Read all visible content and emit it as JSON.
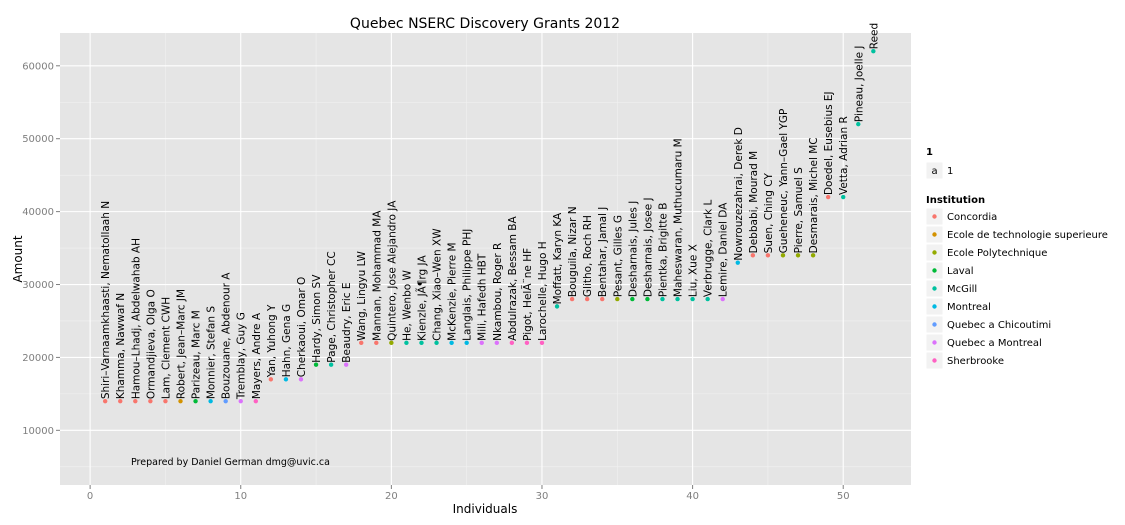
{
  "chart_data": {
    "type": "scatter",
    "title": "Quebec NSERC Discovery Grants 2012",
    "xlabel": "Individuals",
    "ylabel": "Amount",
    "xlim": [
      -2,
      54.5
    ],
    "ylim": [
      2500,
      64500
    ],
    "x_ticks": [
      0,
      10,
      20,
      30,
      40,
      50
    ],
    "y_ticks": [
      10000,
      20000,
      30000,
      40000,
      50000,
      60000
    ],
    "grid": true,
    "legend_position": "right",
    "annotation": "Prepared by Daniel German dmg@uvic.ca",
    "legend_label_key": {
      "title": "1",
      "glyph": "a",
      "label": "1"
    },
    "legend_title": "Institution",
    "institutions": [
      {
        "name": "Concordia",
        "color": "#F8766D"
      },
      {
        "name": "Ecole de technologie superieure",
        "color": "#D39200"
      },
      {
        "name": "Ecole Polytechnique",
        "color": "#93AA00"
      },
      {
        "name": "Laval",
        "color": "#00BA38"
      },
      {
        "name": "McGill",
        "color": "#00C19F"
      },
      {
        "name": "Montreal",
        "color": "#00B9E3"
      },
      {
        "name": "Quebec a Chicoutimi",
        "color": "#619CFF"
      },
      {
        "name": "Quebec a Montreal",
        "color": "#DB72FB"
      },
      {
        "name": "Sherbrooke",
        "color": "#FF61C3"
      }
    ],
    "points": [
      {
        "x": 1,
        "y": 14000,
        "name": "Shiri–Varnaamkhaasti, Nematollaah N",
        "institution": "Concordia"
      },
      {
        "x": 2,
        "y": 14000,
        "name": "Khamma, Nawwaf N",
        "institution": "Concordia"
      },
      {
        "x": 3,
        "y": 14000,
        "name": "Hamou–Lhadj, Abdelwahab AH",
        "institution": "Concordia"
      },
      {
        "x": 4,
        "y": 14000,
        "name": "Ormandjieva, Olga O",
        "institution": "Concordia"
      },
      {
        "x": 5,
        "y": 14000,
        "name": "Lam, Clement CWH",
        "institution": "Concordia"
      },
      {
        "x": 6,
        "y": 14000,
        "name": "Robert, Jean–Marc JM",
        "institution": "Ecole de technologie superieure"
      },
      {
        "x": 7,
        "y": 14000,
        "name": "Parizeau, Marc M",
        "institution": "Laval"
      },
      {
        "x": 8,
        "y": 14000,
        "name": "Monnier, Stefan S",
        "institution": "Montreal"
      },
      {
        "x": 9,
        "y": 14000,
        "name": "Bouzouane, Abdenour A",
        "institution": "Quebec a Chicoutimi"
      },
      {
        "x": 10,
        "y": 14000,
        "name": "Tremblay, Guy G",
        "institution": "Quebec a Montreal"
      },
      {
        "x": 11,
        "y": 14000,
        "name": "Mayers, Andre A",
        "institution": "Sherbrooke"
      },
      {
        "x": 12,
        "y": 17000,
        "name": "Yan, Yuhong Y",
        "institution": "Concordia"
      },
      {
        "x": 13,
        "y": 17000,
        "name": "Hahn, Gena G",
        "institution": "Montreal"
      },
      {
        "x": 14,
        "y": 17000,
        "name": "Cherkaoui, Omar O",
        "institution": "Quebec a Montreal"
      },
      {
        "x": 15,
        "y": 19000,
        "name": "Hardy, Simon SV",
        "institution": "Laval"
      },
      {
        "x": 16,
        "y": 19000,
        "name": "Page, Christopher CC",
        "institution": "McGill"
      },
      {
        "x": 17,
        "y": 19000,
        "name": "Beaudry, Eric E",
        "institution": "Quebec a Montreal"
      },
      {
        "x": 18,
        "y": 22000,
        "name": "Wang, Lingyu LW",
        "institution": "Concordia"
      },
      {
        "x": 19,
        "y": 22000,
        "name": "Mannan, Mohammad MA",
        "institution": "Concordia"
      },
      {
        "x": 20,
        "y": 22000,
        "name": "Quintero, Jose Alejandro JA",
        "institution": "Ecole Polytechnique"
      },
      {
        "x": 21,
        "y": 22000,
        "name": "He, Wenbo W",
        "institution": "McGill"
      },
      {
        "x": 22,
        "y": 22000,
        "name": "Kienzle, JÃ¶rg JA",
        "institution": "McGill"
      },
      {
        "x": 23,
        "y": 22000,
        "name": "Chang, Xiao–Wen XW",
        "institution": "McGill"
      },
      {
        "x": 24,
        "y": 22000,
        "name": "McKenzie, Pierre M",
        "institution": "Montreal"
      },
      {
        "x": 25,
        "y": 22000,
        "name": "Langlais, Philippe PHJ",
        "institution": "Montreal"
      },
      {
        "x": 26,
        "y": 22000,
        "name": "Mili, Hafedh HBT",
        "institution": "Quebec a Montreal"
      },
      {
        "x": 27,
        "y": 22000,
        "name": "Nkambou, Roger R",
        "institution": "Quebec a Montreal"
      },
      {
        "x": 28,
        "y": 22000,
        "name": "Abdulrazak, Bessam BA",
        "institution": "Sherbrooke"
      },
      {
        "x": 29,
        "y": 22000,
        "name": "Pigot, HelÃ¨ne HF",
        "institution": "Sherbrooke"
      },
      {
        "x": 30,
        "y": 22000,
        "name": "Larochelle, Hugo H",
        "institution": "Sherbrooke"
      },
      {
        "x": 31,
        "y": 27000,
        "name": "Moffatt, Karyn KA",
        "institution": "McGill"
      },
      {
        "x": 32,
        "y": 28000,
        "name": "Bouguila, Nizar N",
        "institution": "Concordia"
      },
      {
        "x": 33,
        "y": 28000,
        "name": "Glitho, Roch RH",
        "institution": "Concordia"
      },
      {
        "x": 34,
        "y": 28000,
        "name": "Bentahar, Jamal J",
        "institution": "Concordia"
      },
      {
        "x": 35,
        "y": 28000,
        "name": "Pesant, Gilles G",
        "institution": "Ecole Polytechnique"
      },
      {
        "x": 36,
        "y": 28000,
        "name": "Desharnais, Jules J",
        "institution": "Laval"
      },
      {
        "x": 37,
        "y": 28000,
        "name": "Desharnais, Josee J",
        "institution": "Laval"
      },
      {
        "x": 38,
        "y": 28000,
        "name": "Pientka, Brigitte B",
        "institution": "McGill"
      },
      {
        "x": 39,
        "y": 28000,
        "name": "Maheswaran, Muthucumaru M",
        "institution": "McGill"
      },
      {
        "x": 40,
        "y": 28000,
        "name": "Liu, Xue X",
        "institution": "McGill"
      },
      {
        "x": 41,
        "y": 28000,
        "name": "Verbrugge, Clark L",
        "institution": "McGill"
      },
      {
        "x": 42,
        "y": 28000,
        "name": "Lemire, Daniel DA",
        "institution": "Quebec a Montreal"
      },
      {
        "x": 43,
        "y": 33000,
        "name": "Nowrouzezahrai, Derek D",
        "institution": "Montreal"
      },
      {
        "x": 44,
        "y": 34000,
        "name": "Debbabi, Mourad M",
        "institution": "Concordia"
      },
      {
        "x": 45,
        "y": 34000,
        "name": "Suen, Ching CY",
        "institution": "Concordia"
      },
      {
        "x": 46,
        "y": 34000,
        "name": "Gueheneuc, Yann–Gael YGP",
        "institution": "Ecole Polytechnique"
      },
      {
        "x": 47,
        "y": 34000,
        "name": "Pierre, Samuel S",
        "institution": "Ecole Polytechnique"
      },
      {
        "x": 48,
        "y": 34000,
        "name": "Desmarais, Michel MC",
        "institution": "Ecole Polytechnique"
      },
      {
        "x": 49,
        "y": 42000,
        "name": "Doedel, Eusebius EJ",
        "institution": "Concordia"
      },
      {
        "x": 50,
        "y": 42000,
        "name": "Vetta, Adrian R",
        "institution": "McGill"
      },
      {
        "x": 51,
        "y": 52000,
        "name": "Pineau, Joelle J",
        "institution": "McGill"
      },
      {
        "x": 52,
        "y": 62000,
        "name": "Reed",
        "institution": "McGill"
      }
    ]
  }
}
